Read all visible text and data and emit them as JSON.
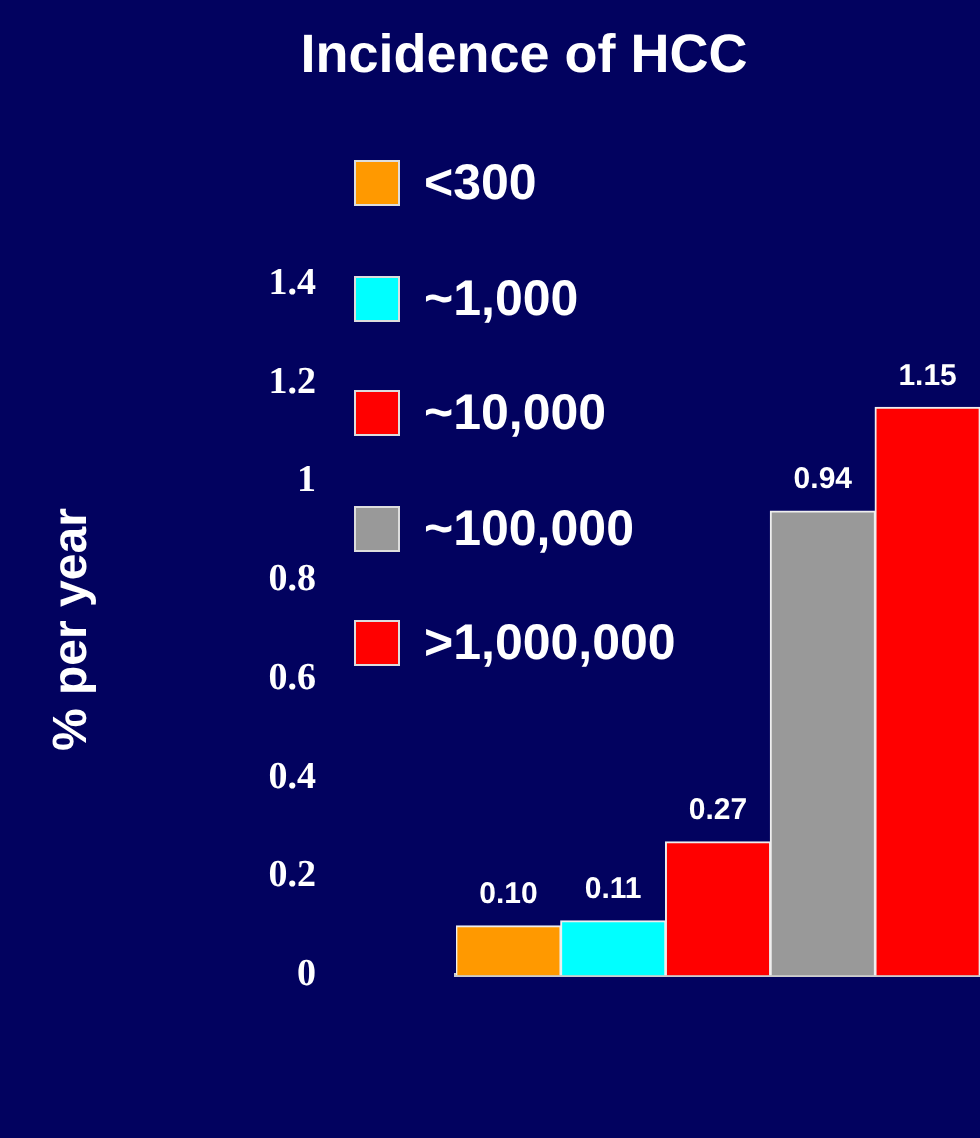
{
  "chart_data": {
    "type": "bar",
    "title": "Incidence of HCC",
    "ylabel": "% per year",
    "categories": [
      null,
      null,
      null,
      null,
      null
    ],
    "series": [
      {
        "name": "<300",
        "color": "#ff9900",
        "values": [
          0.1,
          null,
          null,
          null,
          null
        ],
        "value_labels": [
          "0.10",
          null,
          null,
          null,
          null
        ]
      },
      {
        "name": "~1,000",
        "color": "#00ffff",
        "values": [
          null,
          0.11,
          null,
          null,
          null
        ],
        "value_labels": [
          null,
          "0.11",
          null,
          null,
          null
        ]
      },
      {
        "name": "~10,000",
        "color": "#ff0000",
        "values": [
          null,
          null,
          0.27,
          null,
          null
        ],
        "value_labels": [
          null,
          null,
          "0.27",
          null,
          null
        ]
      },
      {
        "name": "~100,000",
        "color": "#999999",
        "values": [
          null,
          null,
          null,
          0.94,
          null
        ],
        "value_labels": [
          null,
          null,
          null,
          "0.94",
          null
        ]
      },
      {
        "name": ">1,000,000",
        "color": "#ff0000",
        "values": [
          null,
          null,
          null,
          null,
          1.15
        ],
        "value_labels": [
          null,
          null,
          null,
          null,
          "1.15"
        ]
      }
    ],
    "ylim": [
      0,
      1.4
    ],
    "yticks": [
      0,
      0.2,
      0.4,
      0.6,
      0.8,
      1,
      1.2,
      1.4
    ],
    "tick_labels": "y",
    "grid": false,
    "legend": "top left"
  }
}
